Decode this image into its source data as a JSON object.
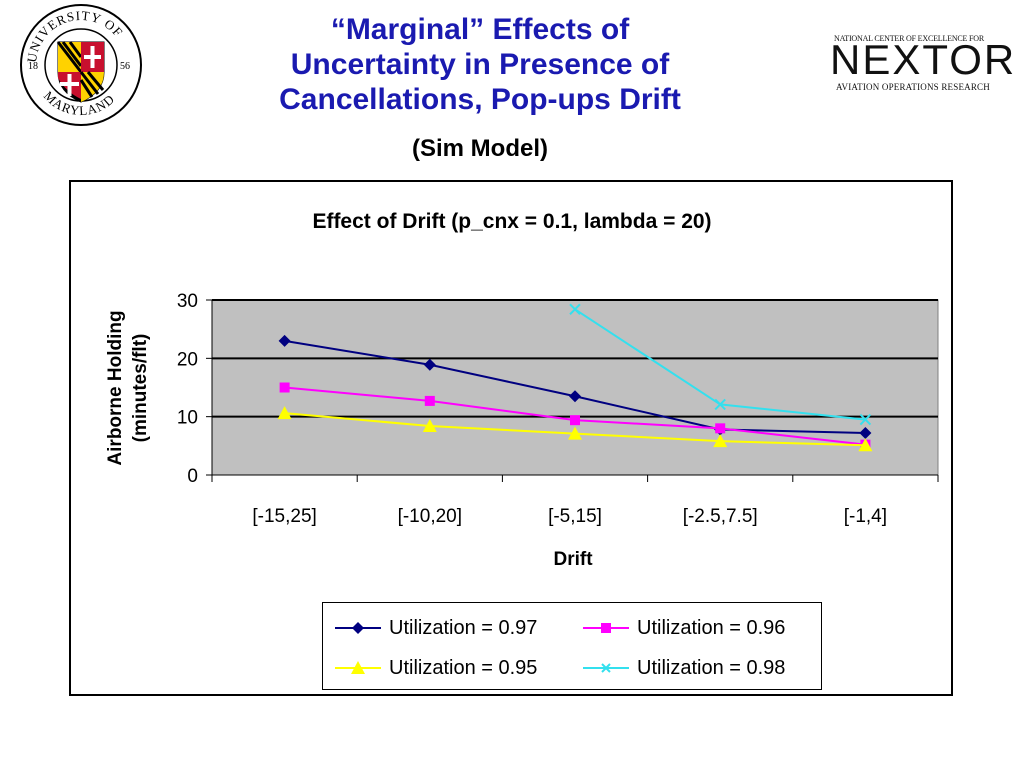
{
  "slide": {
    "title_lines": [
      "“Marginal” Effects of",
      "Uncertainty in Presence of",
      "Cancellations, Pop-ups Drift"
    ],
    "subtitle": "(Sim Model)"
  },
  "logos": {
    "umd": {
      "text_top": "UNIVERSITY OF",
      "text_bottom": "MARYLAND",
      "year_left": "18",
      "year_right": "56"
    },
    "nextor": {
      "top": "NATIONAL CENTER OF EXCELLENCE FOR",
      "name": "NEXTOR",
      "bottom": "AVIATION OPERATIONS RESEARCH"
    }
  },
  "colors": {
    "plot_bg": "#c0c0c0",
    "s097": "#000080",
    "s096": "#ff00ff",
    "s095": "#ffff00",
    "s098": "#33e0ee"
  },
  "chart_data": {
    "type": "line",
    "title": "Effect of Drift (p_cnx = 0.1, lambda = 20)",
    "xlabel": "Drift",
    "ylabel_lines": [
      "Airborne Holding",
      "(minutes/flt)"
    ],
    "categories": [
      "[-15,25]",
      "[-10,20]",
      "[-5,15]",
      "[-2.5,7.5]",
      "[-1,4]"
    ],
    "ylim": [
      0,
      30
    ],
    "yticks": [
      0,
      10,
      20,
      30
    ],
    "grid": "horizontal",
    "legend_position": "bottom",
    "series": [
      {
        "name": "Utilization = 0.97",
        "marker": "diamond",
        "color": "#000080",
        "values": [
          23,
          18.9,
          13.5,
          7.8,
          7.2
        ]
      },
      {
        "name": "Utilization = 0.96",
        "marker": "square",
        "color": "#ff00ff",
        "values": [
          15,
          12.7,
          9.4,
          8,
          5.2
        ]
      },
      {
        "name": "Utilization = 0.95",
        "marker": "triangle",
        "color": "#ffff00",
        "values": [
          10.6,
          8.4,
          7.1,
          5.8,
          5.1
        ]
      },
      {
        "name": "Utilization = 0.98",
        "marker": "x",
        "color": "#33e0ee",
        "values": [
          null,
          null,
          28.4,
          12.1,
          9.5
        ]
      }
    ]
  }
}
